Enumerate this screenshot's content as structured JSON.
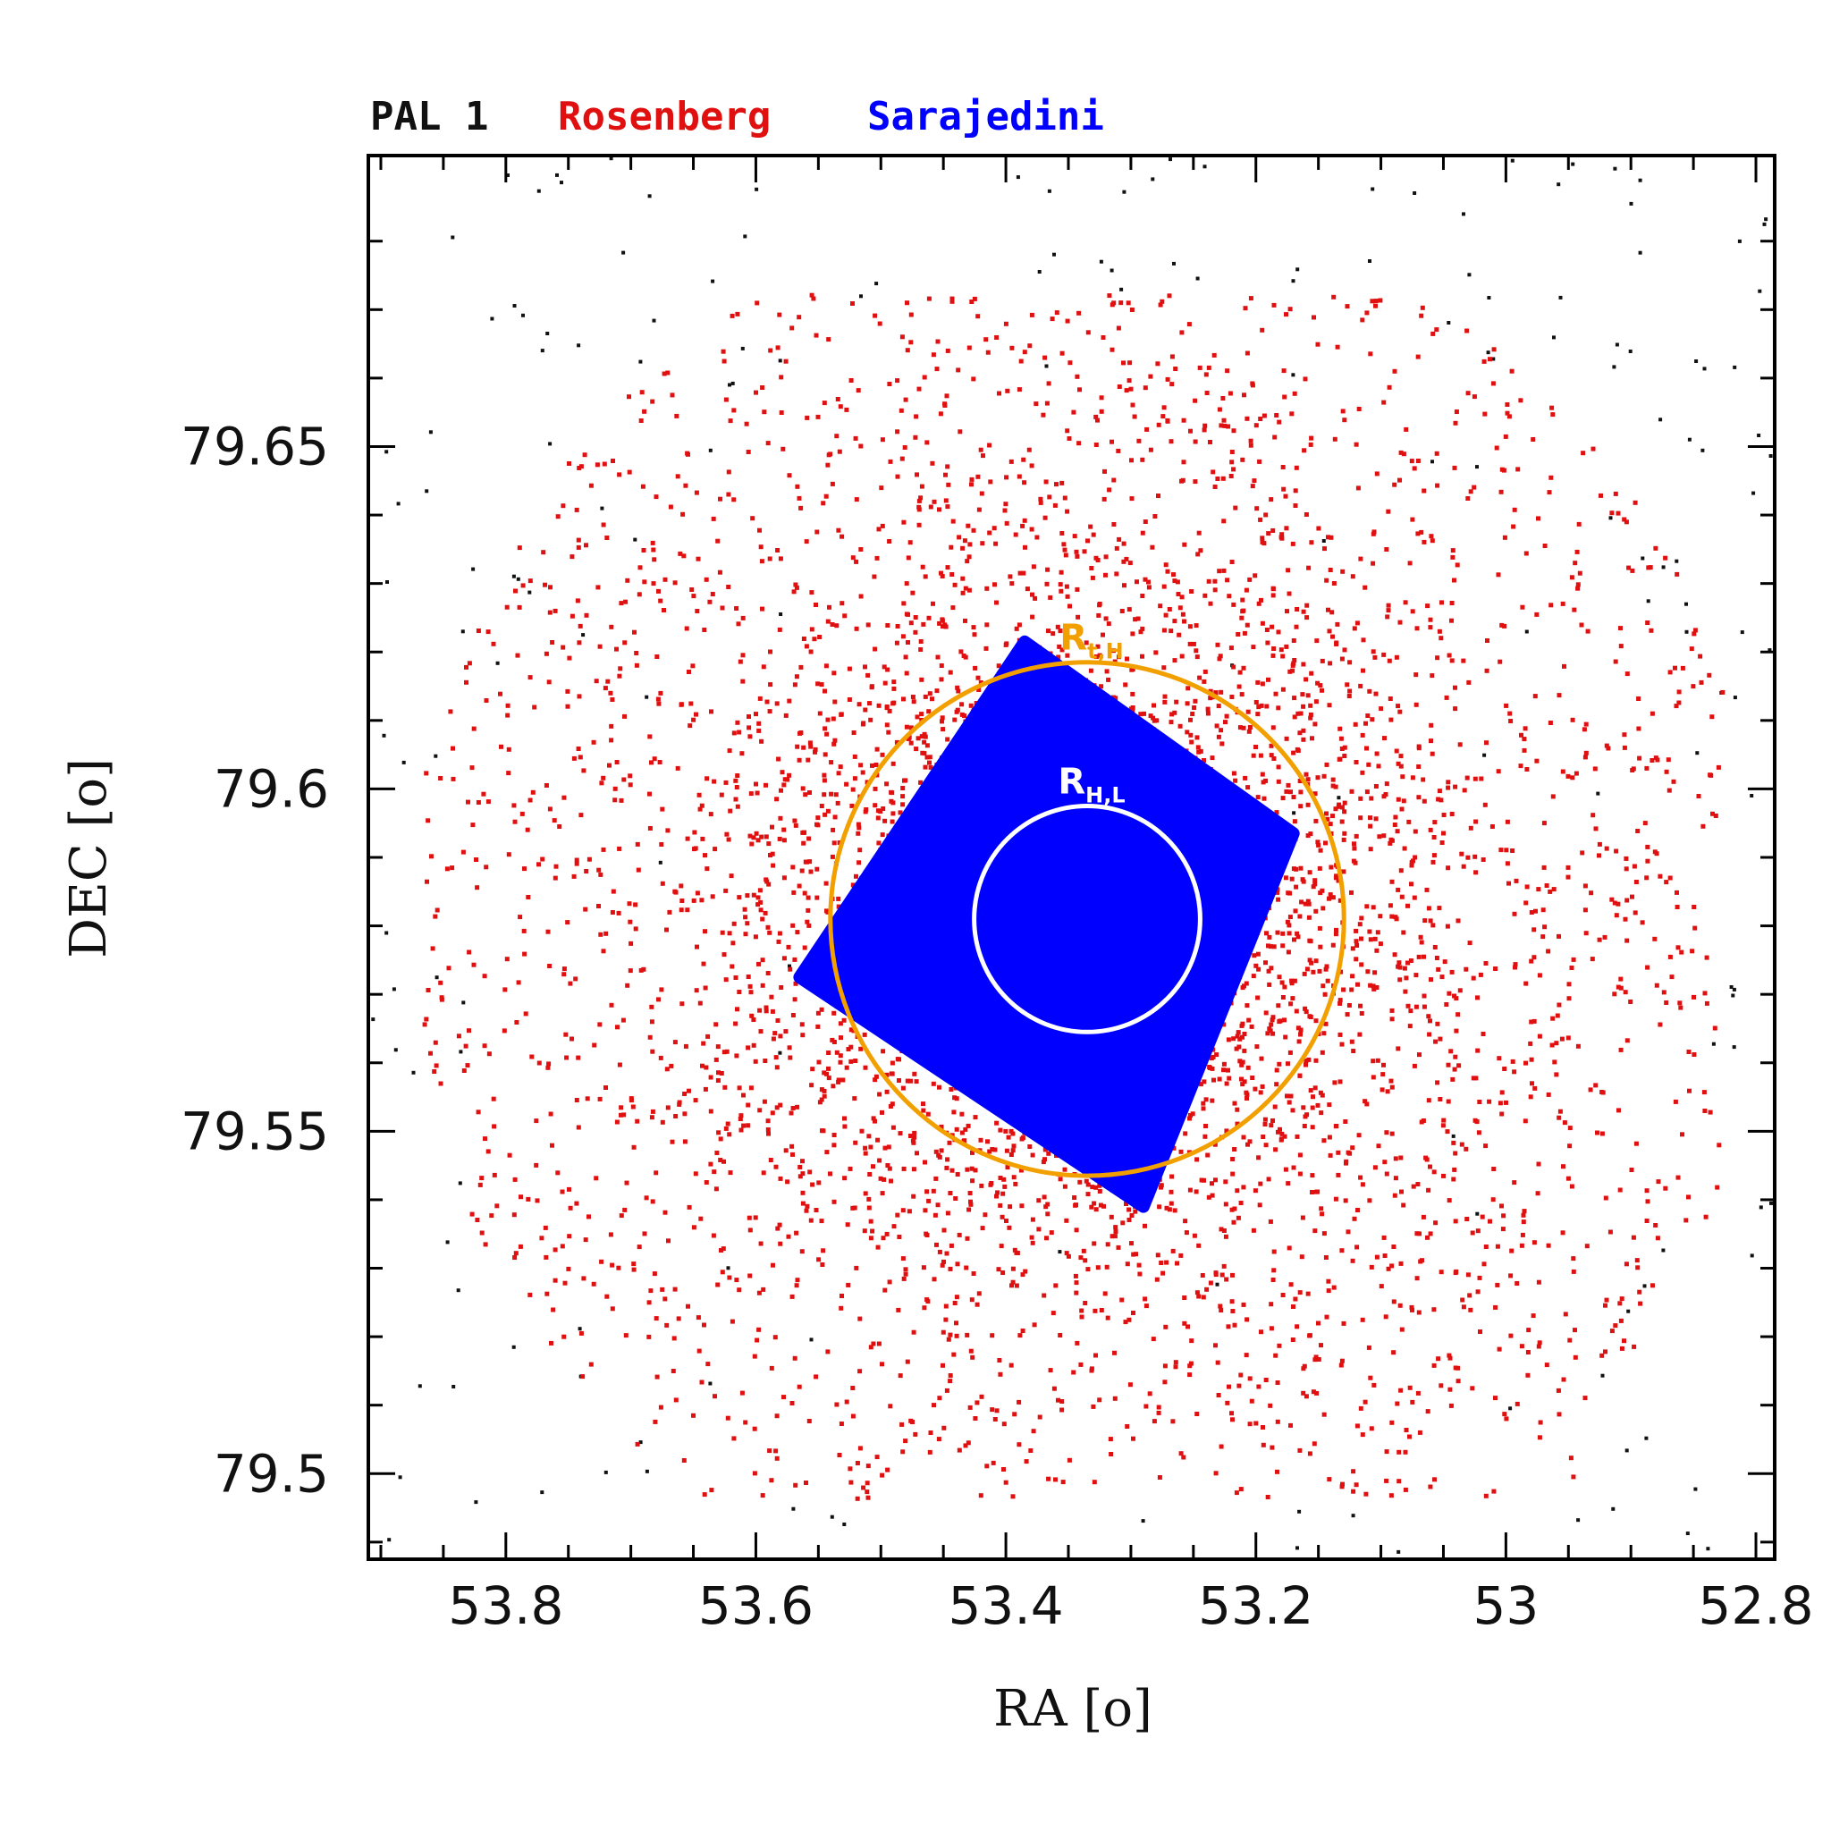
{
  "chart_data": {
    "type": "scatter",
    "title": "PAL 1",
    "xlabel": "RA [o]",
    "ylabel": "DEC [o]",
    "xlim": [
      53.91,
      52.785
    ],
    "ylim": [
      79.4875,
      79.6925
    ],
    "x_ticks": [
      {
        "value": 53.8,
        "label": "53.8"
      },
      {
        "value": 53.6,
        "label": "53.6"
      },
      {
        "value": 53.4,
        "label": "53.4"
      },
      {
        "value": 53.2,
        "label": "53.2"
      },
      {
        "value": 53.0,
        "label": "53"
      },
      {
        "value": 52.8,
        "label": "52.8"
      }
    ],
    "y_ticks": [
      {
        "value": 79.65,
        "label": "79.65"
      },
      {
        "value": 79.6,
        "label": "79.6"
      },
      {
        "value": 79.55,
        "label": "79.55"
      },
      {
        "value": 79.5,
        "label": "79.5"
      }
    ],
    "x_minor_step": 0.05,
    "y_minor_step": 0.01,
    "grid": false,
    "legend_position": "top-left",
    "series": [
      {
        "name": "PAL 1",
        "color": "#111111",
        "description_count": 400
      },
      {
        "name": "Rosenberg",
        "color": "#e01010"
      },
      {
        "name": "Sarajedini",
        "color": "#0000ff"
      }
    ],
    "field_center": {
      "ra": 53.335,
      "dec": 79.581
    },
    "sarajedini_field_corners": [
      {
        "ra": 53.385,
        "dec": 79.6215
      },
      {
        "ra": 53.17,
        "dec": 79.5935
      },
      {
        "ra": 53.29,
        "dec": 79.539
      },
      {
        "ra": 53.565,
        "dec": 79.5725
      }
    ],
    "circles": [
      {
        "label": "R",
        "subscript": "H,L",
        "ra_center": 53.335,
        "dec_center": 79.581,
        "dec_radius": 0.0165,
        "color": "#ffffff"
      },
      {
        "label": "R",
        "subscript": "t,H",
        "ra_center": 53.335,
        "dec_center": 79.581,
        "dec_radius": 0.0375,
        "color": "#f2a000"
      }
    ]
  }
}
